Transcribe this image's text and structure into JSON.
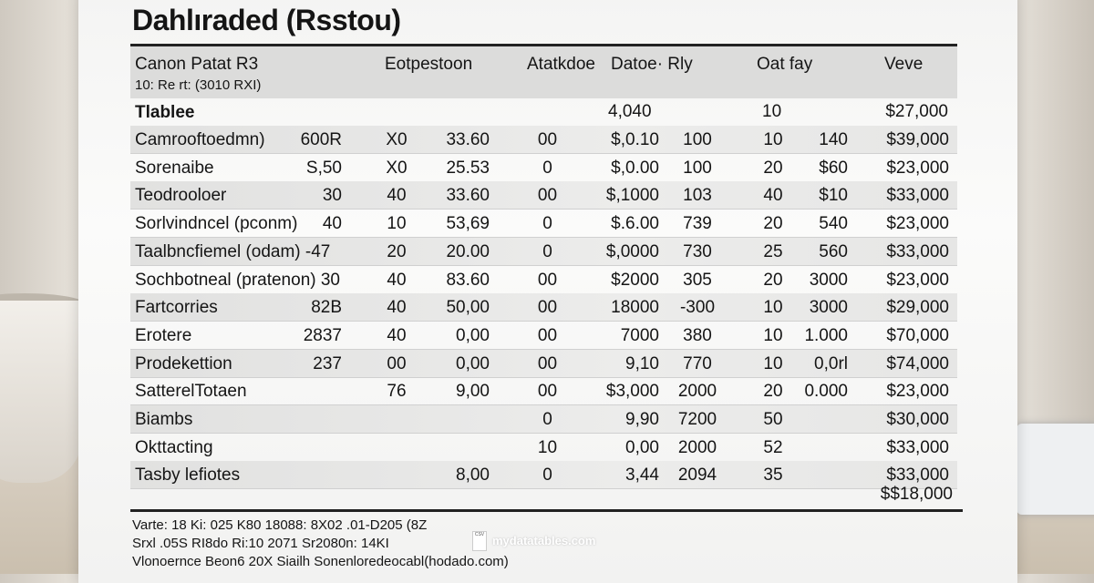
{
  "document": {
    "title": "Dahlıraded (Rsstou)",
    "headers": {
      "col_name": "Canon Patat R3",
      "col_name_sub": "10: Re rt: (3010 RXI)",
      "col_b": "Eotpestoon",
      "col_c": "Atatkdoe",
      "col_d": "Datoe· Rly",
      "col_e": "Oat fay",
      "col_f": "Veve"
    },
    "section": {
      "label": "Tlablee",
      "v1": "4,040",
      "v2": "10",
      "v3": "$27,000"
    },
    "rows": [
      [
        "Camrooftoedmn)",
        "600R",
        "X0",
        "33.60",
        "00",
        "$,0.10",
        "100",
        "10",
        "140",
        "$39,000"
      ],
      [
        "Sorenaibe",
        "S,50",
        "X0",
        "25.53",
        "0",
        "$,0.00",
        "100",
        "20",
        "$60",
        "$23,000"
      ],
      [
        "Teodrooloer",
        "30",
        "40",
        "33.60",
        "00",
        "$,1000",
        "103",
        "40",
        "$10",
        "$33,000"
      ],
      [
        "Sorlvindncel (pconm)",
        "40",
        "10",
        "53,69",
        "0",
        "$.6.00",
        "739",
        "20",
        "540",
        "$23,000"
      ],
      [
        "Taalbncfiemel (odam) -47",
        "",
        "20",
        "20.00",
        "0",
        "$,0000",
        "730",
        "25",
        "560",
        "$33,000"
      ],
      [
        "Sochbotneal (pratenon) 30",
        "",
        "40",
        "83.60",
        "00",
        "$2000",
        "305",
        "20",
        "3000",
        "$23,000"
      ],
      [
        "Fartcorries",
        "82B",
        "40",
        "50,00",
        "00",
        "18000",
        "-300",
        "10",
        "3000",
        "$29,000"
      ],
      [
        "Erotere",
        "2837",
        "40",
        "0,00",
        "00",
        "7000",
        "380",
        "10",
        "1.000",
        "$70,000"
      ],
      [
        "Prodekettion",
        "237",
        "00",
        "0,00",
        "00",
        "9,10",
        "770",
        "10",
        "0,0rl",
        "$74,000"
      ],
      [
        "SatterelTotaen",
        "",
        "76",
        "9,00",
        "00",
        "$3,000",
        "2000",
        "20",
        "0.000",
        "$23,000"
      ],
      [
        "Biambs",
        "",
        "",
        "",
        "0",
        "9,90",
        "7200",
        "50",
        "",
        "$30,000"
      ],
      [
        "Okttacting",
        "",
        "",
        "",
        "10",
        "0,00",
        "2000",
        "52",
        "",
        "$33,000"
      ],
      [
        "Tasby lefiotes",
        "",
        "",
        "8,00",
        "0",
        "3,44",
        "2094",
        "35",
        "",
        "$33,000"
      ]
    ],
    "grand_total": "$$18,000",
    "footer": [
      "Varte: 18 Ki:                    025 K80 18088: 8X02 .01-D205 (8Z",
      "Srxl .05S RI8do Ri:10 2071 Sr2080n: 14KI",
      "Vlonoernce Beon6 20X Siailh Sonenloredeocabl(hodado.com)"
    ],
    "watermark": "mydatatables.com",
    "watermark_icon": "csv-file-icon",
    "watermark_icon_label": "CSV"
  }
}
